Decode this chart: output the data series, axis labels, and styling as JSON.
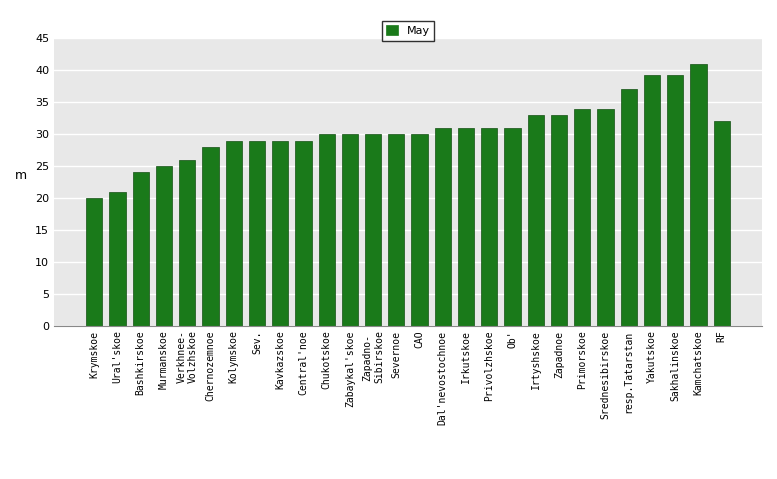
{
  "categories": [
    "Krymskoe",
    "Ural'skoe",
    "Bashkirskoe",
    "Murmanskoe",
    "Verkhnee-\nVolzhskoe",
    "Chernozemnoe",
    "Kolymskoe",
    "Sev.",
    "Kavkazskoe",
    "Central'noe",
    "Chukotskoe",
    "Zabaykal'skoe",
    "Zapadno-\nSibirskoe",
    "Severnoe",
    "CAO",
    "Dal'nevostochnoe",
    "Irkutskoe",
    "Privolzhskoe",
    "Ob'",
    "Irtyshskoe",
    "Zapadnoe",
    "Primorskoe",
    "Srednesibirskoe",
    "resp.Tatarstan",
    "Yakutskoe",
    "Sakhalinskoe",
    "Kamchatskoe",
    "RF"
  ],
  "values": [
    20,
    21,
    24,
    25,
    26,
    28,
    29,
    29,
    29,
    29,
    30,
    30,
    30,
    30,
    30,
    31,
    31,
    31,
    31,
    33,
    33,
    34,
    34,
    37,
    39.3,
    39.3,
    41,
    32
  ],
  "bar_color": "#1a7a1a",
  "bar_edge_color": "#145014",
  "ylabel": "m",
  "legend_label": "May",
  "legend_color": "#1a7a1a",
  "ylim": [
    0,
    45
  ],
  "yticks": [
    0,
    5,
    10,
    15,
    20,
    25,
    30,
    35,
    40,
    45
  ],
  "bg_color": "#e8e8e8",
  "fig_bg_color": "#ffffff",
  "grid_color": "#ffffff"
}
